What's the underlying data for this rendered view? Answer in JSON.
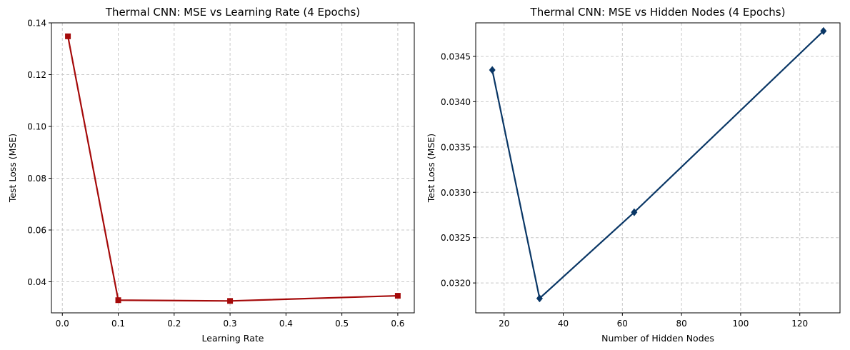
{
  "chart_data": [
    {
      "type": "line",
      "title": "Thermal CNN: MSE vs Learning Rate (4 Epochs)",
      "xlabel": "Learning Rate",
      "ylabel": "Test Loss (MSE)",
      "xlim": [
        -0.0195,
        0.6295
      ],
      "ylim": [
        0.028,
        0.14
      ],
      "xticks": [
        0.0,
        0.1,
        0.2,
        0.3,
        0.4,
        0.5,
        0.6
      ],
      "xtick_labels": [
        "0.0",
        "0.1",
        "0.2",
        "0.3",
        "0.4",
        "0.5",
        "0.6"
      ],
      "yticks": [
        0.04,
        0.06,
        0.08,
        0.1,
        0.12,
        0.14
      ],
      "ytick_labels": [
        "0.04",
        "0.06",
        "0.08",
        "0.10",
        "0.12",
        "0.14"
      ],
      "grid": true,
      "marker": "square",
      "color": "#a50a0a",
      "series": [
        {
          "x": [
            0.01,
            0.1,
            0.3,
            0.6
          ],
          "y": [
            0.1348,
            0.0329,
            0.0326,
            0.0346
          ]
        }
      ]
    },
    {
      "type": "line",
      "title": "Thermal CNN: MSE vs Hidden Nodes (4 Epochs)",
      "xlabel": "Number of Hidden Nodes",
      "ylabel": "Test Loss (MSE)",
      "xlim": [
        10.4,
        133.6
      ],
      "ylim": [
        0.03167,
        0.03487
      ],
      "xticks": [
        20,
        40,
        60,
        80,
        100,
        120
      ],
      "xtick_labels": [
        "20",
        "40",
        "60",
        "80",
        "100",
        "120"
      ],
      "yticks": [
        0.032,
        0.0325,
        0.033,
        0.0335,
        0.034,
        0.0345
      ],
      "ytick_labels": [
        "0.0320",
        "0.0325",
        "0.0330",
        "0.0335",
        "0.0340",
        "0.0345"
      ],
      "grid": true,
      "marker": "diamond",
      "color": "#0a3766",
      "series": [
        {
          "x": [
            16,
            32,
            64,
            128
          ],
          "y": [
            0.03435,
            0.03183,
            0.03278,
            0.03478
          ]
        }
      ]
    }
  ]
}
